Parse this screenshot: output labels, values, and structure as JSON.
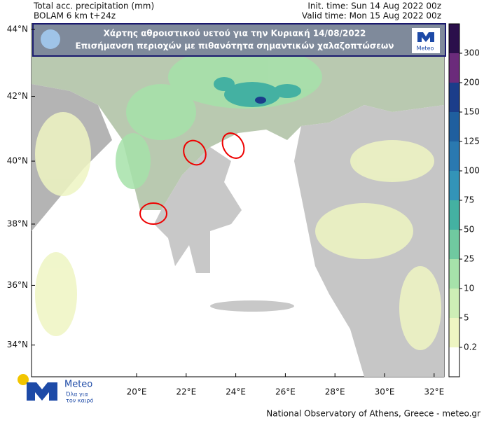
{
  "header": {
    "title": "Total acc. precipitation (mm)",
    "model": "BOLAM 6 km t+24z",
    "init_time": "Init. time: Sun 14 Aug 2022 00z",
    "valid_time": "Valid time: Mon 15 Aug 2022 00z"
  },
  "banner": {
    "line1": "Χάρτης αθροιστικού υετού για την Κυριακή 14/08/2022",
    "line2": "Επισήμανση περιοχών με πιθανότητα σημαντικών χαλαζοπτώσεων",
    "logo_text": "Meteo"
  },
  "map": {
    "lat_ticks": [
      {
        "value": 44,
        "label": "44°N"
      },
      {
        "value": 42,
        "label": "42°N"
      },
      {
        "value": 40,
        "label": "40°N"
      },
      {
        "value": 38,
        "label": "38°N"
      },
      {
        "value": 36,
        "label": "36°N"
      },
      {
        "value": 34,
        "label": "34°N"
      }
    ],
    "lon_ticks": [
      {
        "value": 20,
        "label": "20°E"
      },
      {
        "value": 22,
        "label": "22°E"
      },
      {
        "value": 24,
        "label": "24°E"
      },
      {
        "value": 26,
        "label": "26°E"
      },
      {
        "value": 28,
        "label": "28°E"
      },
      {
        "value": 30,
        "label": "30°E"
      },
      {
        "value": 32,
        "label": "32°E"
      }
    ]
  },
  "colorbar": {
    "levels": [
      0.2,
      5,
      10,
      25,
      50,
      75,
      100,
      125,
      150,
      200,
      300
    ],
    "colors": [
      "#ffffff",
      "#eef5c2",
      "#cdeeb6",
      "#a6e2aa",
      "#70c9a0",
      "#44b1a2",
      "#3394b8",
      "#2a79b0",
      "#1f5f9f",
      "#1b3d8a",
      "#6b2b7b",
      "#2b0f4b"
    ]
  },
  "logo": {
    "name": "Meteo",
    "slogan_line1": "Όλα για",
    "slogan_line2": "τον καιρό"
  },
  "footer": "National Observatory of Athens, Greece - meteo.gr"
}
